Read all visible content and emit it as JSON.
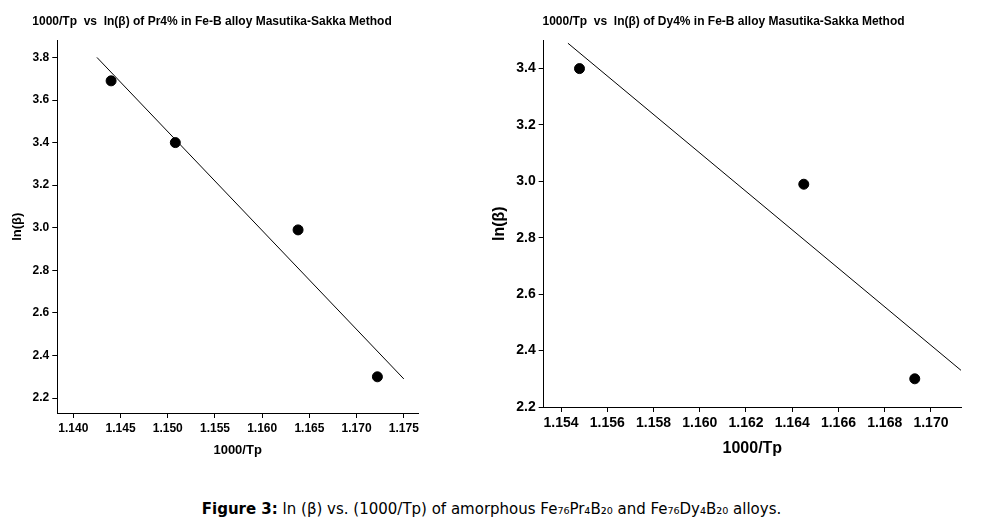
{
  "chart_data": [
    {
      "type": "scatter",
      "title": "1000/Tp  vs  ln(β) of Pr4% in Fe-B alloy Masutika-Sakka Method",
      "x_label": "1000/Tp",
      "y_label": "ln(β)",
      "xlim": [
        1.1383,
        1.1765
      ],
      "xticks": [
        {
          "value": 1.14,
          "label": "1.140"
        },
        1.145,
        {
          "value": 1.15,
          "label": "1.150"
        },
        1.155,
        {
          "value": 1.16,
          "label": "1.160"
        },
        1.165,
        {
          "value": 1.17,
          "label": "1.170"
        },
        1.175
      ],
      "ylim": [
        2.13,
        3.88
      ],
      "yticks": [
        2.2,
        2.4,
        2.6,
        2.8,
        {
          "value": 3,
          "label": "3.0"
        },
        3.2,
        3.4,
        3.6,
        3.8
      ],
      "grid": false,
      "series": [
        {
          "type": "scatter",
          "marker": "circle",
          "color": "#000000",
          "x": [
            1.144,
            1.1508,
            1.1638,
            1.1722
          ],
          "values": [
            3.69,
            3.4,
            2.99,
            2.3
          ]
        },
        {
          "type": "line",
          "line_style": "solid",
          "color": "#000000",
          "x": [
            1.1425,
            1.175
          ],
          "values": [
            3.8,
            2.29
          ]
        }
      ]
    },
    {
      "type": "scatter",
      "title": "1000/Tp  vs  ln(β) of Dy4% in Fe-B alloy Masutika-Sakka Method",
      "x_label": "1000/Tp",
      "y_label": "ln(β)",
      "xlim": [
        1.15325,
        1.1713
      ],
      "xticks": [
        1.154,
        1.156,
        1.158,
        {
          "value": 1.16,
          "label": "1.160"
        },
        1.162,
        1.164,
        1.166,
        1.168,
        {
          "value": 1.17,
          "label": "1.170"
        }
      ],
      "ylim": [
        2.2,
        3.5
      ],
      "yticks": [
        2.2,
        2.4,
        2.6,
        2.8,
        {
          "value": 3,
          "label": "3.0"
        },
        3.2,
        3.4
      ],
      "grid": false,
      "series": [
        {
          "type": "scatter",
          "marker": "circle",
          "color": "#000000",
          "x": [
            1.1548,
            1.1645,
            1.1693
          ],
          "values": [
            3.4,
            2.99,
            2.3
          ]
        },
        {
          "type": "line",
          "line_style": "solid",
          "color": "#000000",
          "x": [
            1.1543,
            1.1713
          ],
          "values": [
            3.49,
            2.33
          ]
        }
      ]
    }
  ],
  "caption": {
    "label": "Figure 3:",
    "text": "ln (β) vs. (1000/Tp) of amorphous Fe₇₆Pr₄B₂₀ and Fe₇₆Dy₄B₂₀ alloys."
  }
}
